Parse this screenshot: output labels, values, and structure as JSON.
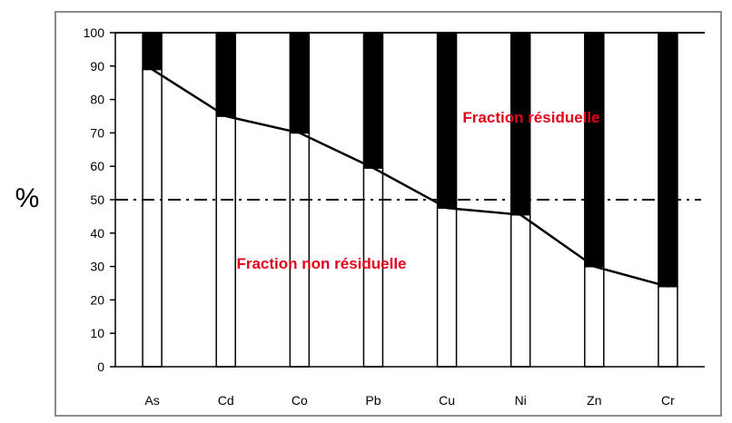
{
  "chart_data": {
    "type": "bar",
    "stacked": true,
    "categories": [
      "As",
      "Cd",
      "Co",
      "Pb",
      "Cu",
      "Ni",
      "Zn",
      "Cr"
    ],
    "series": [
      {
        "name": "Fraction non résiduelle",
        "values": [
          89,
          75,
          70,
          59.5,
          47.5,
          45.5,
          30,
          24
        ],
        "color": "#ffffff"
      },
      {
        "name": "Fraction  résiduelle",
        "values": [
          11,
          25,
          30,
          40.5,
          52.5,
          54.5,
          70,
          76
        ],
        "color": "#000000"
      }
    ],
    "connecting_line": [
      89,
      75,
      70,
      59.5,
      47.5,
      45.5,
      30,
      24
    ],
    "reference_line": 50,
    "ylabel": "%",
    "ylim": [
      0,
      100
    ],
    "yticks": [
      0,
      10,
      20,
      30,
      40,
      50,
      60,
      70,
      80,
      90,
      100
    ],
    "grid": false,
    "annotations": {
      "upper": "Fraction  résiduelle",
      "lower": "Fraction non résiduelle"
    }
  }
}
